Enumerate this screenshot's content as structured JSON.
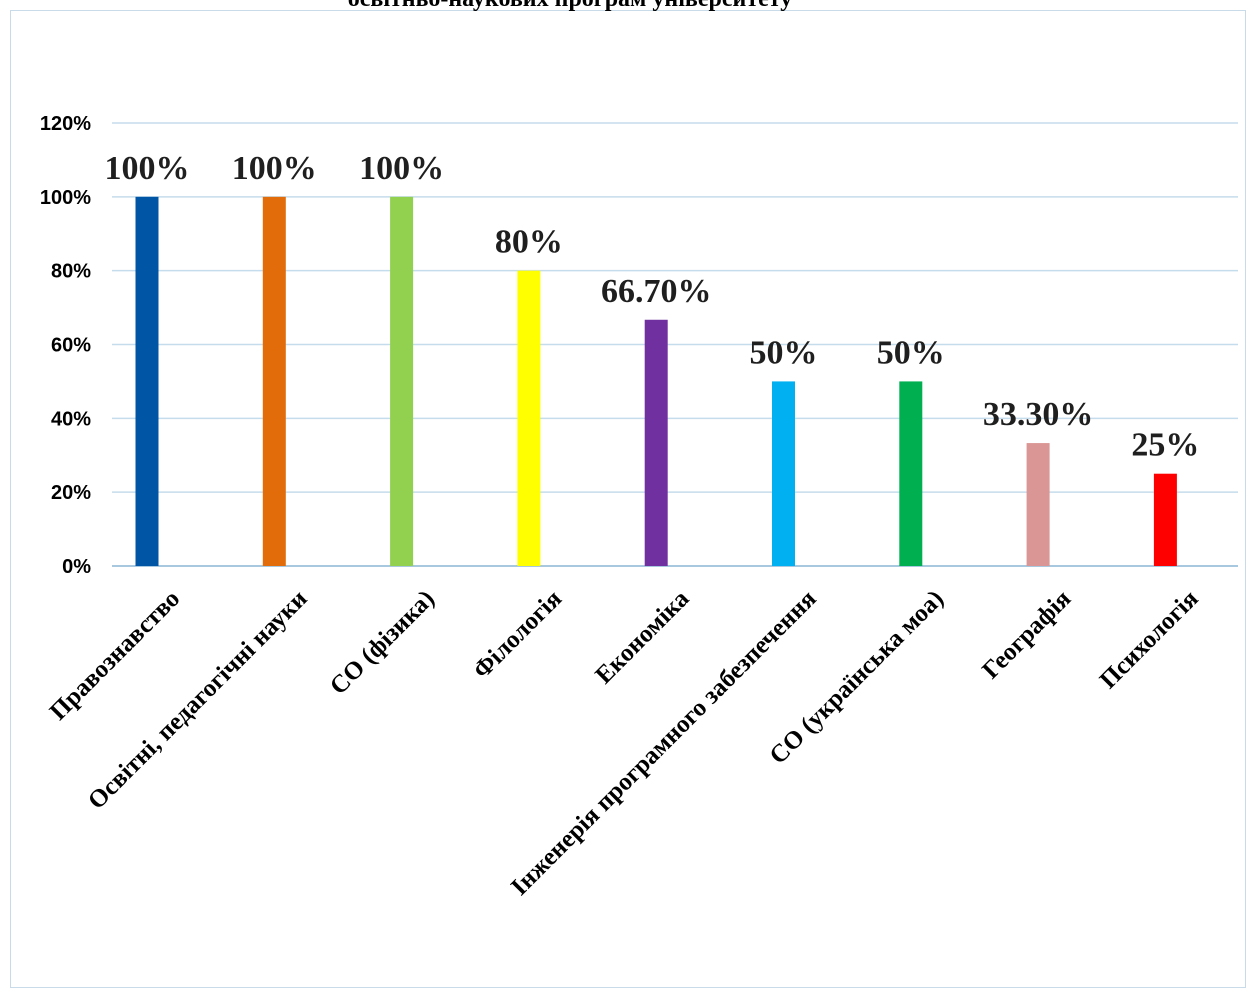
{
  "chart_data": {
    "type": "bar",
    "title": "освітньо-наукових програм університету",
    "categories": [
      "Правознавство",
      "Освітні, педагогічні науки",
      "СО (фізика)",
      "Філологія",
      "Економіка",
      "Інженерія програмного забезпечення",
      "СО (українська моа)",
      "Географія",
      "Психологія"
    ],
    "values": [
      100,
      100,
      100,
      80,
      66.7,
      50,
      50,
      33.3,
      25
    ],
    "data_labels": [
      "100%",
      "100%",
      "100%",
      "80%",
      "66.70%",
      "50%",
      "50%",
      "33.30%",
      "25%"
    ],
    "colors": [
      "#0055a5",
      "#e36c0a",
      "#92d050",
      "#ffff00",
      "#7030a0",
      "#00b0f0",
      "#00b050",
      "#d99694",
      "#ff0000"
    ],
    "y_ticks": [
      "0%",
      "20%",
      "40%",
      "60%",
      "80%",
      "100%",
      "120%"
    ],
    "ylim": [
      0,
      120
    ],
    "grid": true,
    "legend": "none"
  }
}
